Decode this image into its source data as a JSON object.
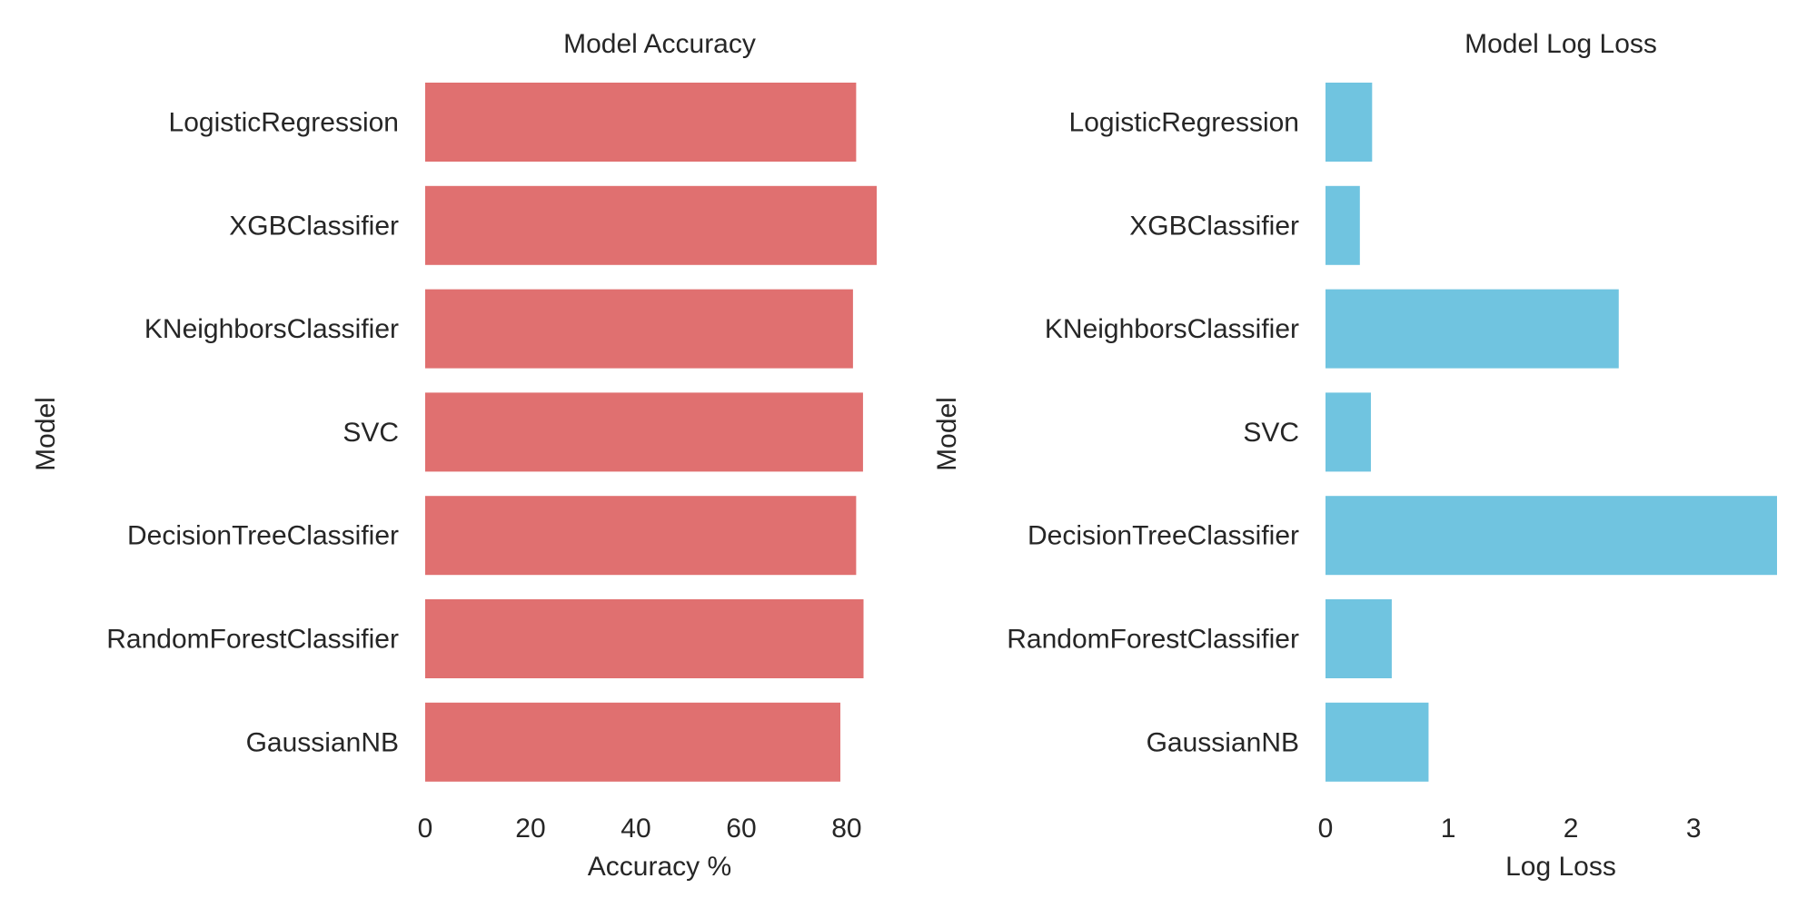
{
  "chart_data": [
    {
      "type": "bar",
      "orientation": "horizontal",
      "title": "Model Accuracy",
      "xlabel": "Accuracy %",
      "ylabel": "Model",
      "categories": [
        "LogisticRegression",
        "XGBClassifier",
        "KNeighborsClassifier",
        "SVC",
        "DecisionTreeClassifier",
        "RandomForestClassifier",
        "GaussianNB"
      ],
      "values": [
        81.8,
        85.7,
        81.2,
        83.1,
        81.8,
        83.2,
        78.8
      ],
      "xticks": [
        0,
        20,
        40,
        60,
        80
      ],
      "xlim": [
        0,
        85.7
      ],
      "color": "#e07070",
      "grid": false
    },
    {
      "type": "bar",
      "orientation": "horizontal",
      "title": "Model Log Loss",
      "xlabel": "Log Loss",
      "ylabel": "Model",
      "categories": [
        "LogisticRegression",
        "XGBClassifier",
        "KNeighborsClassifier",
        "SVC",
        "DecisionTreeClassifier",
        "RandomForestClassifier",
        "GaussianNB"
      ],
      "values": [
        0.38,
        0.28,
        2.39,
        0.37,
        3.68,
        0.54,
        0.84
      ],
      "xticks": [
        0,
        1,
        2,
        3
      ],
      "xlim": [
        0,
        3.68
      ],
      "color": "#70c4e0",
      "grid": false
    }
  ]
}
